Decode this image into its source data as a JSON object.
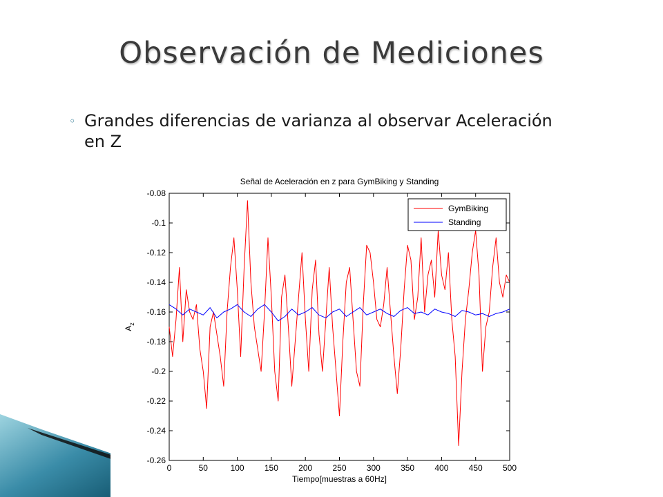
{
  "slide": {
    "title": "Observación de Mediciones",
    "bullet": "Grandes diferencias de varianza al observar Aceleración en Z",
    "bullet_marker": "◦",
    "accent_color": "#1f6f8b"
  },
  "chart_data": {
    "type": "line",
    "title": "Señal de Aceleración en z para GymBiking y Standing",
    "xlabel": "Tiempo[muestras a 60Hz]",
    "ylabel": "A",
    "ylabel_subscript": "z",
    "xlim": [
      0,
      500
    ],
    "ylim": [
      -0.26,
      -0.08
    ],
    "xticks": [
      0,
      50,
      100,
      150,
      200,
      250,
      300,
      350,
      400,
      450,
      500
    ],
    "yticks": [
      -0.08,
      -0.1,
      -0.12,
      -0.14,
      -0.16,
      -0.18,
      -0.2,
      -0.22,
      -0.24,
      -0.26
    ],
    "legend_position": "top-right",
    "grid": false,
    "series": [
      {
        "name": "GymBiking",
        "color": "#ff0000",
        "x": [
          0,
          5,
          10,
          15,
          20,
          25,
          30,
          35,
          40,
          45,
          50,
          55,
          60,
          65,
          70,
          75,
          80,
          85,
          90,
          95,
          100,
          105,
          110,
          115,
          120,
          125,
          130,
          135,
          140,
          145,
          150,
          155,
          160,
          165,
          170,
          175,
          180,
          185,
          190,
          195,
          200,
          205,
          210,
          215,
          220,
          225,
          230,
          235,
          240,
          245,
          250,
          255,
          260,
          265,
          270,
          275,
          280,
          285,
          290,
          295,
          300,
          305,
          310,
          315,
          320,
          325,
          330,
          335,
          340,
          345,
          350,
          355,
          360,
          365,
          370,
          375,
          380,
          385,
          390,
          395,
          400,
          405,
          410,
          415,
          420,
          425,
          430,
          435,
          440,
          445,
          450,
          455,
          460,
          465,
          470,
          475,
          480,
          485,
          490,
          495,
          500
        ],
        "values": [
          -0.17,
          -0.19,
          -0.165,
          -0.13,
          -0.18,
          -0.145,
          -0.16,
          -0.165,
          -0.155,
          -0.185,
          -0.2,
          -0.225,
          -0.17,
          -0.16,
          -0.175,
          -0.19,
          -0.21,
          -0.16,
          -0.13,
          -0.11,
          -0.145,
          -0.19,
          -0.13,
          -0.085,
          -0.14,
          -0.17,
          -0.185,
          -0.2,
          -0.16,
          -0.11,
          -0.15,
          -0.2,
          -0.22,
          -0.15,
          -0.135,
          -0.17,
          -0.21,
          -0.18,
          -0.15,
          -0.12,
          -0.165,
          -0.2,
          -0.145,
          -0.125,
          -0.175,
          -0.2,
          -0.165,
          -0.13,
          -0.17,
          -0.2,
          -0.23,
          -0.18,
          -0.14,
          -0.13,
          -0.165,
          -0.2,
          -0.21,
          -0.155,
          -0.115,
          -0.12,
          -0.14,
          -0.165,
          -0.17,
          -0.155,
          -0.13,
          -0.16,
          -0.19,
          -0.215,
          -0.185,
          -0.145,
          -0.115,
          -0.125,
          -0.165,
          -0.15,
          -0.11,
          -0.16,
          -0.135,
          -0.125,
          -0.15,
          -0.105,
          -0.135,
          -0.145,
          -0.12,
          -0.165,
          -0.19,
          -0.25,
          -0.2,
          -0.165,
          -0.145,
          -0.12,
          -0.105,
          -0.135,
          -0.2,
          -0.17,
          -0.16,
          -0.13,
          -0.11,
          -0.14,
          -0.15,
          -0.135,
          -0.14
        ]
      },
      {
        "name": "Standing",
        "color": "#0000ff",
        "x": [
          0,
          10,
          20,
          30,
          40,
          50,
          60,
          70,
          80,
          90,
          100,
          110,
          120,
          130,
          140,
          150,
          160,
          170,
          180,
          190,
          200,
          210,
          220,
          230,
          240,
          250,
          260,
          270,
          280,
          290,
          300,
          310,
          320,
          330,
          340,
          350,
          360,
          370,
          380,
          390,
          400,
          410,
          420,
          430,
          440,
          450,
          460,
          470,
          480,
          490,
          500
        ],
        "values": [
          -0.155,
          -0.158,
          -0.162,
          -0.158,
          -0.16,
          -0.162,
          -0.157,
          -0.164,
          -0.16,
          -0.158,
          -0.155,
          -0.16,
          -0.163,
          -0.158,
          -0.155,
          -0.16,
          -0.166,
          -0.163,
          -0.158,
          -0.162,
          -0.16,
          -0.157,
          -0.162,
          -0.164,
          -0.16,
          -0.158,
          -0.163,
          -0.16,
          -0.157,
          -0.162,
          -0.16,
          -0.158,
          -0.161,
          -0.163,
          -0.159,
          -0.157,
          -0.161,
          -0.16,
          -0.162,
          -0.158,
          -0.16,
          -0.161,
          -0.163,
          -0.159,
          -0.16,
          -0.162,
          -0.161,
          -0.163,
          -0.161,
          -0.16,
          -0.158
        ]
      }
    ]
  }
}
